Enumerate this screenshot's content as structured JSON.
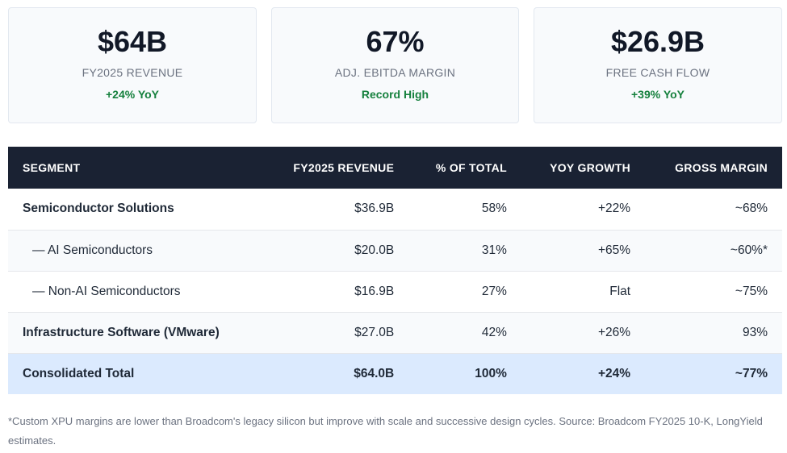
{
  "kpis": [
    {
      "value": "$64B",
      "label": "FY2025 REVENUE",
      "change": "+24% YoY"
    },
    {
      "value": "67%",
      "label": "ADJ. EBITDA MARGIN",
      "change": "Record High"
    },
    {
      "value": "$26.9B",
      "label": "FREE CASH FLOW",
      "change": "+39% YoY"
    }
  ],
  "table": {
    "headers": [
      "SEGMENT",
      "FY2025 REVENUE",
      "% OF TOTAL",
      "YOY GROWTH",
      "GROSS MARGIN"
    ],
    "rows": [
      {
        "segment": "Semiconductor Solutions",
        "revenue": "$36.9B",
        "pct": "58%",
        "growth": "+22%",
        "margin": "~68%"
      },
      {
        "segment": "— AI Semiconductors",
        "revenue": "$20.0B",
        "pct": "31%",
        "growth": "+65%",
        "margin": "~60%*"
      },
      {
        "segment": "— Non-AI Semiconductors",
        "revenue": "$16.9B",
        "pct": "27%",
        "growth": "Flat",
        "margin": "~75%"
      },
      {
        "segment": "Infrastructure Software (VMware)",
        "revenue": "$27.0B",
        "pct": "42%",
        "growth": "+26%",
        "margin": "93%"
      },
      {
        "segment": "Consolidated Total",
        "revenue": "$64.0B",
        "pct": "100%",
        "growth": "+24%",
        "margin": "~77%"
      }
    ]
  },
  "footnote": "*Custom XPU margins are lower than Broadcom's legacy silicon but improve with scale and successive design cycles. Source: Broadcom FY2025 10-K, LongYield estimates."
}
